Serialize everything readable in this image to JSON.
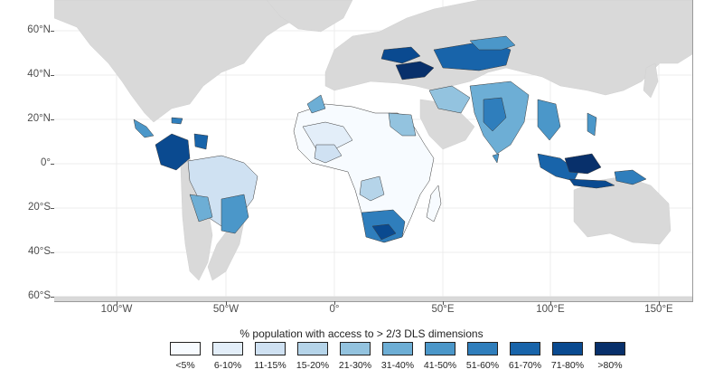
{
  "map": {
    "background_land": "#d9d9d9",
    "grid_color": "#ececec",
    "border_color": "#3a3a3a",
    "lat_labels": [
      "60°N",
      "40°N",
      "20°N",
      "0°",
      "20°S",
      "40°S",
      "60°S"
    ],
    "lon_labels": [
      "100°W",
      "50°W",
      "0°",
      "50°E",
      "100°E",
      "150°E"
    ]
  },
  "legend": {
    "title": "% population with access to > 2/3 DLS dimensions",
    "items": [
      {
        "label": "<5%",
        "color": "#f7fbff"
      },
      {
        "label": "6-10%",
        "color": "#e3eef9"
      },
      {
        "label": "11-15%",
        "color": "#cfe1f2"
      },
      {
        "label": "15-20%",
        "color": "#b5d4e9"
      },
      {
        "label": "21-30%",
        "color": "#93c3df"
      },
      {
        "label": "31-40%",
        "color": "#6daed5"
      },
      {
        "label": "41-50%",
        "color": "#4b97c9"
      },
      {
        "label": "51-60%",
        "color": "#2f7ebc"
      },
      {
        "label": "61-70%",
        "color": "#1864aa"
      },
      {
        "label": "71-80%",
        "color": "#0a4a90"
      },
      {
        "label": ">80%",
        "color": "#08306b"
      }
    ]
  }
}
